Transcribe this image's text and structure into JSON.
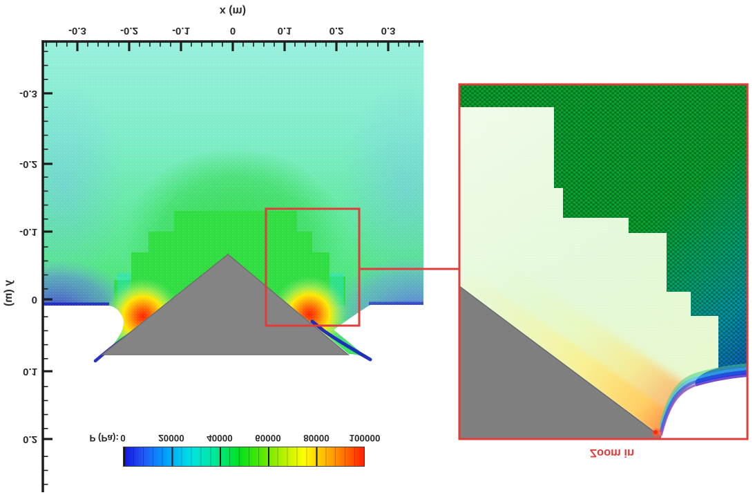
{
  "plot": {
    "x_axis": {
      "title": "x (m)",
      "ticks": [
        "-0.3",
        "-0.2",
        "-0.1",
        "0",
        "0.1",
        "0.2",
        "0.3"
      ]
    },
    "y_axis": {
      "title": "y (m)",
      "ticks": [
        "-0.3",
        "-0.2",
        "-0.1",
        "0",
        "0.1",
        "0.2"
      ]
    },
    "colorbar": {
      "label": "P (Pa):",
      "ticks": [
        "0",
        "20000",
        "40000",
        "60000",
        "80000",
        "100000"
      ]
    },
    "inset_caption": "Zoom in",
    "colors": {
      "accent_red": "#e23b3b",
      "wedge_gray": "#7f7f7f",
      "mesh_green": "#0ca62c",
      "colorbar_low": "#1212dc",
      "colorbar_high": "#ff2000"
    }
  },
  "chart_data": {
    "type": "heatmap",
    "title": "",
    "xlabel": "x (m)",
    "ylabel": "y (m)",
    "x_ticks": [
      -0.3,
      -0.2,
      -0.1,
      0,
      0.1,
      0.2,
      0.3
    ],
    "y_ticks": [
      -0.3,
      -0.2,
      -0.1,
      0,
      0.1,
      0.2
    ],
    "xlim": [
      -0.37,
      0.37
    ],
    "ylim": [
      -0.37,
      0.28
    ],
    "grid": false,
    "legend_position": "horizontal colorbar at bottom left",
    "colorbar": {
      "label": "P (Pa)",
      "min": 0,
      "max": 100000,
      "ticks": [
        0,
        20000,
        40000,
        60000,
        80000,
        100000
      ],
      "palette": "rainbow blue-cyan-green-yellow-orange-red"
    },
    "orientation": "figure is rendered vertically flipped; all text appears upside-down",
    "content": [
      "CFD pressure contour field around a gray triangular wedge body, apex pointing up in flipped view",
      "far field cyan-green, approx 40000-55000 Pa",
      "bright green stepped mesh-refinement halo around the wedge, approx 45000 Pa",
      "high-pressure stagnation spots (yellow-orange-red, approaching 100000 Pa) at both lower wedge corners",
      "dark blue low-pressure separation streaks (below 10000 Pa) trailing past both wedge corners",
      "white (no-data) notches below the field on either side of the wedge base",
      "red rectangle marks region near right wedge corner, connected by a red line to the magnified inset",
      "inset shows unstructured triangular mesh dots: coarse dark-green mesh stepping down to fine pale mesh, teal-to-blue at right edge, gray wedge slope with yellow-orange pressure rise and rainbow separation fan at its tip"
    ],
    "annotations": [
      "Zoom in"
    ]
  }
}
